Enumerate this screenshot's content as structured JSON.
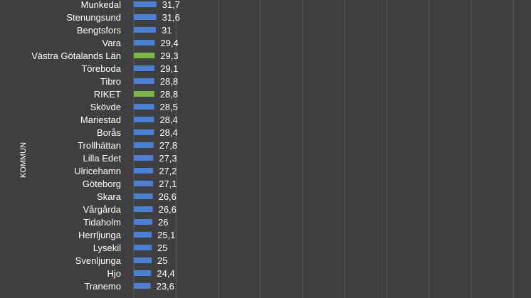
{
  "chart_data": {
    "type": "bar",
    "orientation": "horizontal",
    "ylabel": "KOMMUN",
    "xlabel": "",
    "xlim": [
      0,
      100
    ],
    "grid": true,
    "categories": [
      "Munkedal",
      "Stenungsund",
      "Bengtsfors",
      "Vara",
      "Västra Götalands Län",
      "Töreboda",
      "Tibro",
      "RIKET",
      "Skövde",
      "Mariestad",
      "Borås",
      "Trollhättan",
      "Lilla Edet",
      "Ulricehamn",
      "Göteborg",
      "Skara",
      "Vårgårda",
      "Tidaholm",
      "Herrljunga",
      "Lysekil",
      "Svenljunga",
      "Hjo",
      "Tranemo"
    ],
    "values": [
      31.7,
      31.6,
      31,
      29.4,
      29.3,
      29.1,
      28.8,
      28.8,
      28.5,
      28.4,
      28.4,
      27.8,
      27.3,
      27.2,
      27.1,
      26.6,
      26.6,
      26,
      25.1,
      25,
      25,
      24.4,
      23.6
    ],
    "value_labels": [
      "31,7",
      "31,6",
      "31",
      "29,4",
      "29,3",
      "29,1",
      "28,8",
      "28,8",
      "28,5",
      "28,4",
      "28,4",
      "27,8",
      "27,3",
      "27,2",
      "27,1",
      "26,6",
      "26,6",
      "26",
      "25,1",
      "25",
      "25",
      "24,4",
      "23,6"
    ],
    "highlight": [
      "Västra Götalands Län",
      "RIKET"
    ],
    "colors": {
      "bar": "#4a7fd4",
      "highlight": "#7ab648",
      "background": "#3f3f3f",
      "grid": "#5f5f5f",
      "text": "#ffffff"
    }
  }
}
